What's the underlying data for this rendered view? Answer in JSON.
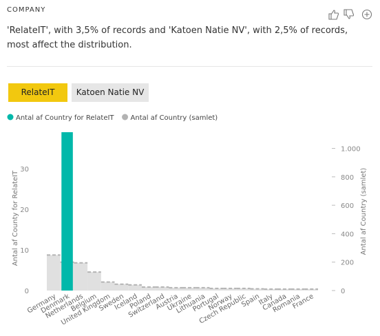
{
  "header": {
    "title": "COMPANY",
    "description": "'RelateIT', with 3,5% of records and 'Katoen Natie NV', with 2,5% of records, most affect the distribution."
  },
  "buttons": [
    "RelateIT",
    "Katoen Natie NV"
  ],
  "chart_data": {
    "type": "bar",
    "categories": [
      "Germany",
      "Denmark",
      "Netherlands",
      "Belgium",
      "United Kingdom",
      "Sweden",
      "Iceland",
      "Poland",
      "Switzerland",
      "Austria",
      "Ukraine",
      "Lithuania",
      "Portugal",
      "Norway",
      "Czech Republic",
      "Spain",
      "Italy",
      "Canada",
      "Romania",
      "France"
    ],
    "series": [
      {
        "name": "Antal af Country for RelateIT",
        "color": "#01b8aa",
        "values": [
          0,
          39,
          0,
          0,
          0,
          0,
          0,
          0,
          0,
          0,
          0,
          0,
          0,
          0,
          0,
          0,
          0,
          0,
          0,
          0
        ]
      },
      {
        "name": "Antal af Country (samlet)",
        "color": "#b3b3b3",
        "axis": "y2",
        "values": [
          250,
          200,
          195,
          130,
          60,
          45,
          40,
          25,
          25,
          20,
          20,
          20,
          15,
          15,
          15,
          12,
          10,
          10,
          10,
          10
        ]
      }
    ],
    "ylabel": "Antal af County for RelateIT",
    "y2label": "Antal af Country (samlet)",
    "ylim": [
      0,
      39
    ],
    "yticks": [
      0,
      10,
      20,
      30
    ],
    "y2lim": [
      0,
      1114
    ],
    "y2ticks": [
      0,
      200,
      400,
      600,
      800,
      {
        "value": 1000,
        "label": "1.000"
      }
    ]
  }
}
